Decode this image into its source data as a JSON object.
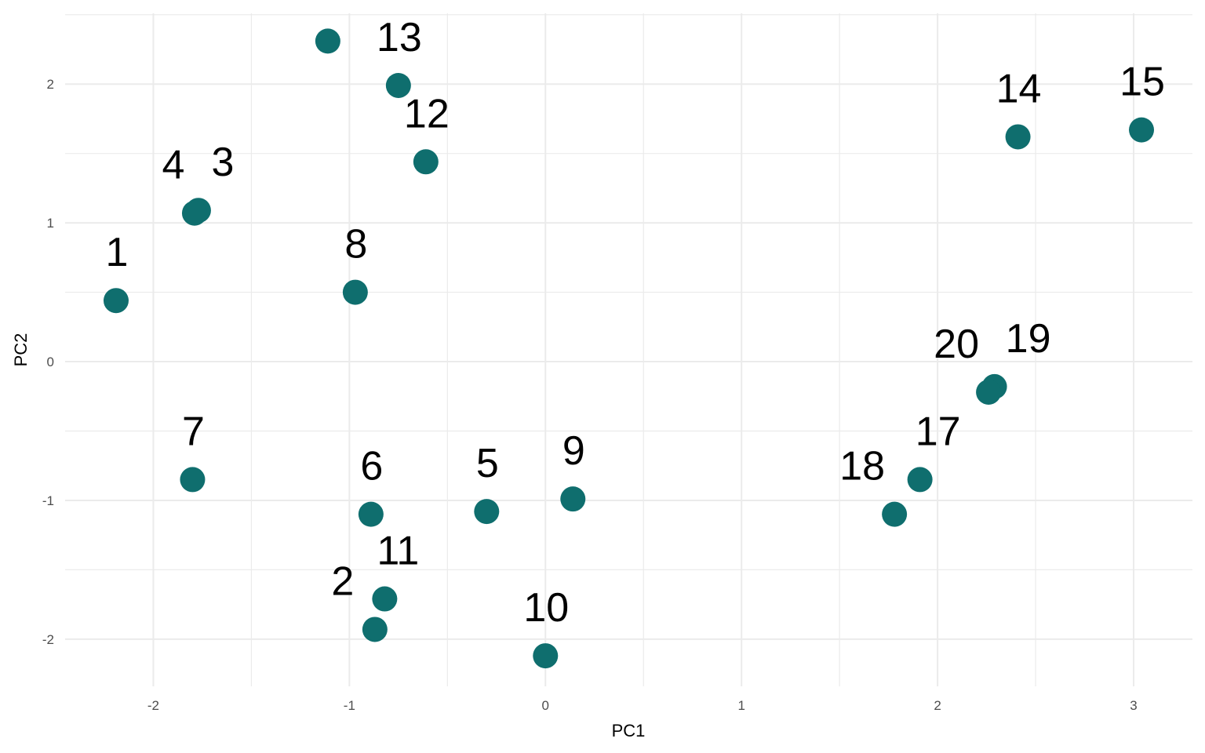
{
  "chart_data": {
    "type": "scatter",
    "title": "",
    "xlabel": "PC1",
    "ylabel": "PC2",
    "xlim": [
      -2.45,
      3.3
    ],
    "ylim": [
      -2.34,
      2.51
    ],
    "x_ticks": [
      -2,
      -1,
      0,
      1,
      2,
      3
    ],
    "y_ticks": [
      -2,
      -1,
      0,
      1,
      2
    ],
    "x_tick_labels": [
      "-2",
      "-1",
      "0",
      "1",
      "2",
      "3"
    ],
    "y_tick_labels": [
      "-2",
      "-1",
      "0",
      "1",
      "2"
    ],
    "grid": true,
    "point_color": "#0f6e6e",
    "points": [
      {
        "label": "1",
        "x": -2.19,
        "y": 0.44
      },
      {
        "label": "2",
        "x": -0.87,
        "y": -1.93
      },
      {
        "label": "3",
        "x": -1.77,
        "y": 1.09
      },
      {
        "label": "4",
        "x": -1.79,
        "y": 1.07
      },
      {
        "label": "5",
        "x": -0.3,
        "y": -1.08
      },
      {
        "label": "6",
        "x": -0.89,
        "y": -1.1
      },
      {
        "label": "7",
        "x": -1.8,
        "y": -0.85
      },
      {
        "label": "8",
        "x": -0.97,
        "y": 0.5
      },
      {
        "label": "9",
        "x": 0.14,
        "y": -0.99
      },
      {
        "label": "10",
        "x": 0.0,
        "y": -2.12
      },
      {
        "label": "11",
        "x": -0.82,
        "y": -1.71
      },
      {
        "label": "12",
        "x": -0.61,
        "y": 1.44
      },
      {
        "label": "13",
        "x": -0.75,
        "y": 1.99
      },
      {
        "label": "14",
        "x": 2.41,
        "y": 1.62
      },
      {
        "label": "15",
        "x": 3.04,
        "y": 1.67
      },
      {
        "x": -1.11,
        "y": 2.31
      },
      {
        "label": "17",
        "x": 1.91,
        "y": -0.85
      },
      {
        "label": "18",
        "x": 1.78,
        "y": -1.1
      },
      {
        "label": "19",
        "x": 2.29,
        "y": -0.18
      },
      {
        "label": "20",
        "x": 2.26,
        "y": -0.22
      }
    ]
  }
}
